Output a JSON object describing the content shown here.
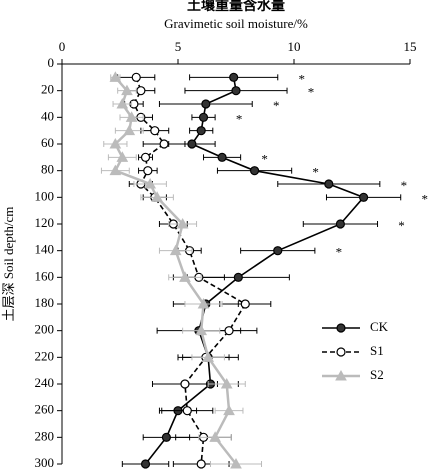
{
  "chart_data": {
    "type": "line",
    "title": "土壤重量含水量",
    "subtitle": "Gravimetic soil moisture/%",
    "y_label": "土层深 Soil depth/cm",
    "depths": [
      10,
      20,
      30,
      40,
      50,
      60,
      70,
      80,
      90,
      100,
      120,
      140,
      160,
      180,
      200,
      220,
      240,
      260,
      280,
      300
    ],
    "xlim": [
      0,
      15
    ],
    "xticks": [
      0,
      5,
      10,
      15
    ],
    "ylim": [
      0,
      300
    ],
    "yticks": [
      0,
      20,
      40,
      60,
      80,
      100,
      120,
      140,
      160,
      180,
      200,
      220,
      240,
      260,
      280,
      300
    ],
    "y_inverted": true,
    "x_axis_position": "top",
    "legend": "lower right",
    "series": [
      {
        "name": "CK",
        "color": "#000000",
        "marker": "circle",
        "marker_fill": "#333333",
        "dash": false,
        "values": [
          7.4,
          7.5,
          6.2,
          6.1,
          6.0,
          5.6,
          6.9,
          8.3,
          11.5,
          13.0,
          12.0,
          9.3,
          7.6,
          6.2,
          5.9,
          6.3,
          6.4,
          5.0,
          4.5,
          3.6
        ],
        "errors": [
          1.9,
          2.2,
          2.0,
          0.5,
          0.5,
          1.0,
          0.8,
          1.6,
          2.2,
          1.6,
          1.6,
          1.6,
          2.2,
          1.4,
          1.8,
          1.3,
          1.2,
          0.8,
          1.0,
          1.0
        ]
      },
      {
        "name": "S1",
        "color": "#000000",
        "marker": "circle",
        "marker_fill": "#ffffff",
        "dash": true,
        "values": [
          3.2,
          3.4,
          3.1,
          3.4,
          4.0,
          4.4,
          3.6,
          3.7,
          3.4,
          4.0,
          4.8,
          5.5,
          5.9,
          7.9,
          7.2,
          6.2,
          5.3,
          5.4,
          6.1,
          6.0
        ],
        "errors": [
          0.8,
          0.6,
          0.4,
          0.5,
          0.6,
          0.9,
          0.3,
          0.4,
          0.5,
          0.5,
          0.6,
          0.5,
          1.1,
          1.1,
          1.2,
          1.0,
          1.4,
          1.1,
          1.2,
          1.2
        ]
      },
      {
        "name": "S2",
        "color": "#bbbbbb",
        "marker": "triangle",
        "marker_fill": "#bbbbbb",
        "dash": false,
        "values": [
          2.3,
          2.8,
          2.6,
          3.0,
          2.9,
          2.3,
          2.6,
          2.3,
          3.8,
          4.1,
          5.2,
          4.9,
          5.3,
          6.1,
          6.0,
          6.3,
          7.1,
          7.2,
          6.6,
          7.5
        ],
        "errors": [
          0.2,
          0.4,
          0.4,
          0.5,
          0.6,
          0.5,
          0.6,
          0.6,
          0.7,
          0.7,
          0.6,
          0.7,
          0.7,
          0.8,
          0.8,
          0.7,
          0.8,
          0.6,
          0.7,
          1.1
        ]
      }
    ],
    "significance": [
      "*",
      "*",
      "*",
      "*",
      null,
      null,
      "*",
      "*",
      "*",
      "*",
      "*",
      "*",
      null,
      null,
      null,
      null,
      null,
      null,
      null,
      null
    ]
  }
}
